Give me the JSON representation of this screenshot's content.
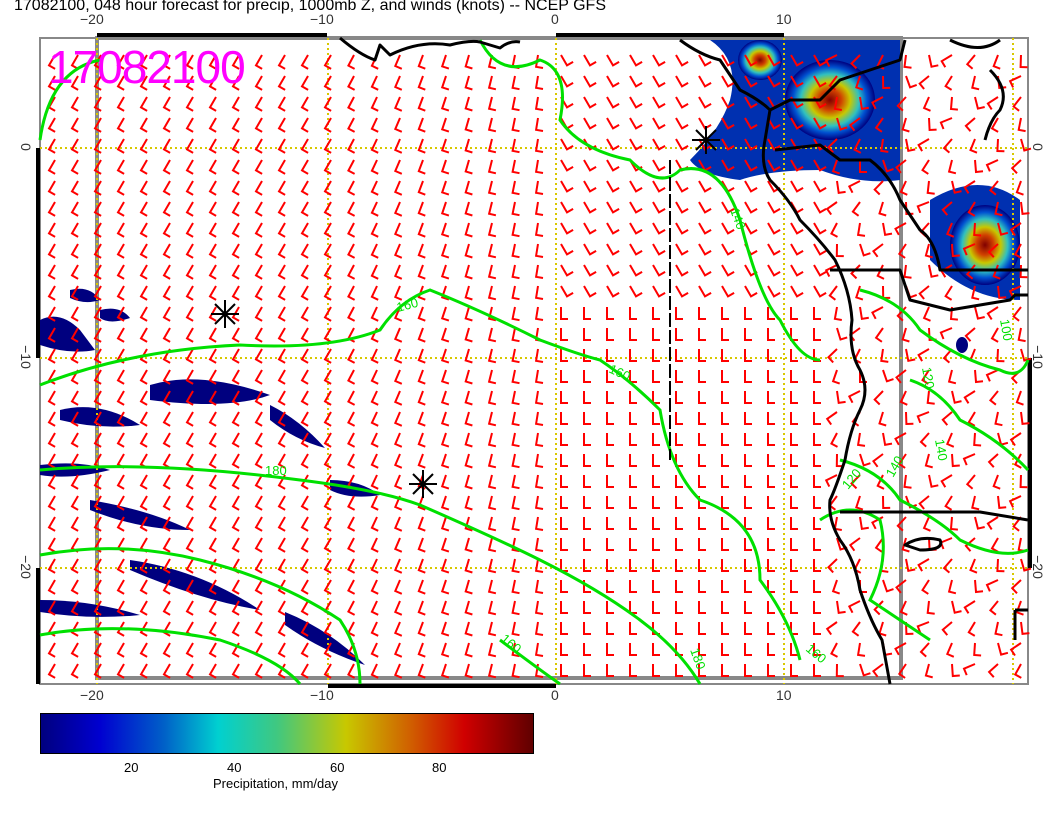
{
  "title": "17082100, 048 hour forecast for precip, 1000mb Z, and winds (knots) -- NCEP GFS",
  "stamp": "17082100",
  "lon_ticks": [
    "−20",
    "−10",
    "0",
    "10"
  ],
  "lat_ticks": [
    "0",
    "−10",
    "−20"
  ],
  "contour_labels": [
    "160",
    "160",
    "180",
    "140",
    "180",
    "160",
    "120",
    "120",
    "140",
    "140",
    "100",
    "160"
  ],
  "colorbar": {
    "label": "Precipitation, mm/day",
    "ticks": [
      "20",
      "40",
      "60",
      "80"
    ],
    "colors": [
      "#00007f",
      "#0000d0",
      "#0060c8",
      "#00d0d0",
      "#40c880",
      "#c8c800",
      "#d06000",
      "#d00000",
      "#600000"
    ]
  },
  "colors": {
    "wind": "#ff0000",
    "contour": "#00e000",
    "coast": "#000000",
    "grid": "#d8c800",
    "stamp": "#ff00ff"
  }
}
